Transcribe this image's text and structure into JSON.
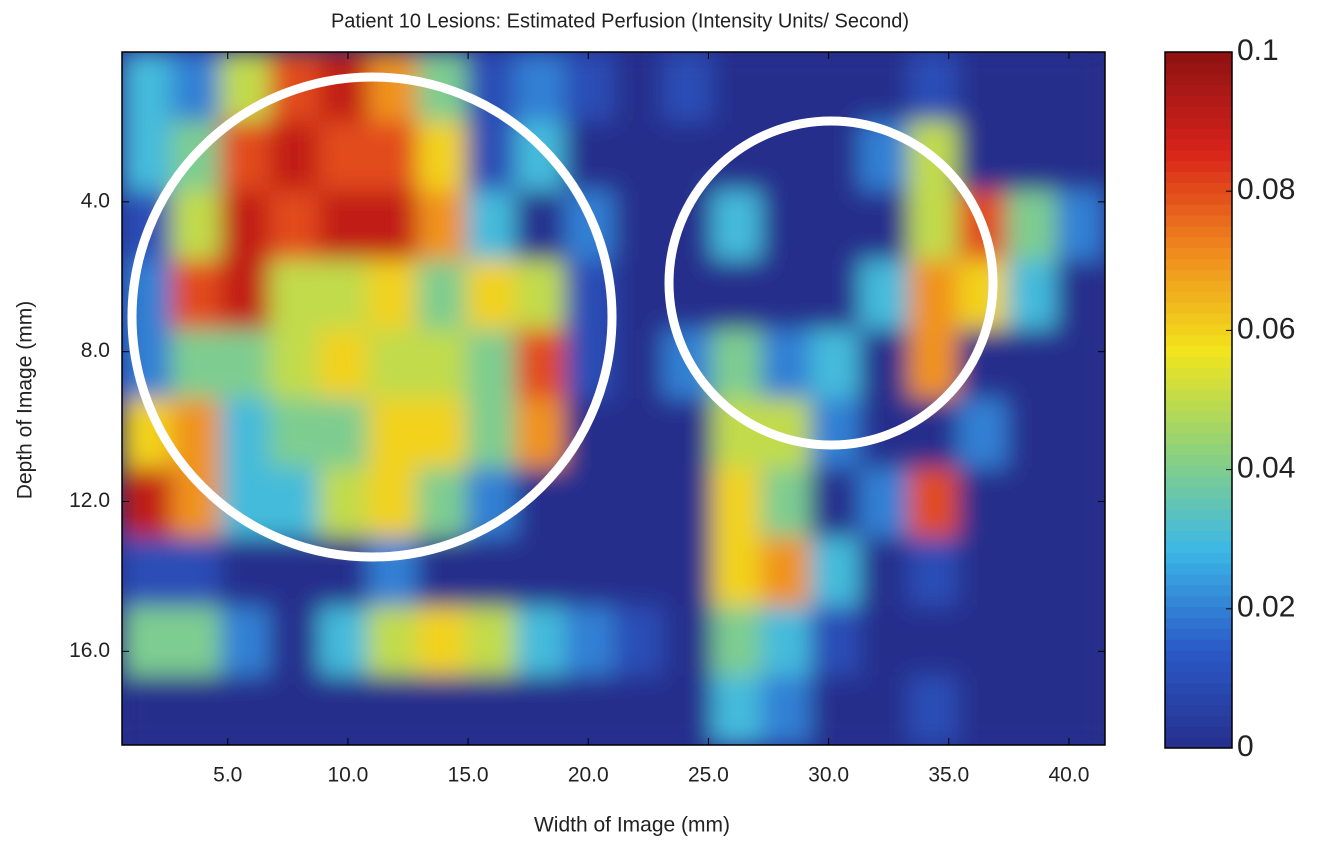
{
  "chart_data": {
    "type": "heatmap",
    "title": "Patient 10 Lesions: Estimated Perfusion (Intensity Units/ Second)",
    "x_label": "Width of Image (mm)",
    "y_label": "Depth of Image (mm)",
    "xlim": [
      0.6,
      41.5
    ],
    "ylim": [
      0,
      18.5
    ],
    "y_inverted": true,
    "xticks": [
      {
        "value": 5,
        "label": "5.0"
      },
      {
        "value": 10,
        "label": "10.0"
      },
      {
        "value": 15,
        "label": "15.0"
      },
      {
        "value": 20,
        "label": "20.0"
      },
      {
        "value": 25,
        "label": "25.0"
      },
      {
        "value": 30,
        "label": "30.0"
      },
      {
        "value": 35,
        "label": "35.0"
      },
      {
        "value": 40,
        "label": "40.0"
      }
    ],
    "yticks": [
      {
        "value": 4,
        "label": "4.0"
      },
      {
        "value": 8,
        "label": "8.0"
      },
      {
        "value": 12,
        "label": "12.0"
      },
      {
        "value": 16,
        "label": "16.0"
      }
    ],
    "colormap": [
      "#262f8c",
      "#2a5ac8",
      "#3cb8e6",
      "#8fd27a",
      "#f2e41c",
      "#f08a1e",
      "#d8231a",
      "#8c1212"
    ],
    "clim": [
      0,
      0.1
    ],
    "cticks": [
      0,
      0.02,
      0.04,
      0.06,
      0.08,
      0.1
    ],
    "values": [
      [
        0.03,
        0.02,
        0.05,
        0.08,
        0.09,
        0.07,
        0.04,
        0.01,
        0.02,
        0.01,
        0,
        0.01,
        0,
        0,
        0,
        0,
        0.01,
        0,
        0,
        0
      ],
      [
        0.03,
        0.04,
        0.08,
        0.09,
        0.08,
        0.08,
        0.06,
        0.01,
        0.03,
        0,
        0,
        0,
        0,
        0,
        0,
        0.02,
        0.05,
        0,
        0,
        0
      ],
      [
        0.01,
        0.05,
        0.09,
        0.08,
        0.09,
        0.09,
        0.07,
        0.03,
        0,
        0.02,
        0,
        0,
        0.03,
        0,
        0,
        0,
        0.05,
        0.08,
        0.04,
        0.02
      ],
      [
        0.02,
        0.08,
        0.09,
        0.05,
        0.05,
        0.06,
        0.04,
        0.06,
        0.05,
        0.01,
        0,
        0,
        0,
        0,
        0,
        0.03,
        0.07,
        0.06,
        0.03,
        0
      ],
      [
        0.02,
        0.04,
        0.04,
        0.05,
        0.06,
        0.05,
        0.05,
        0.04,
        0.08,
        0.01,
        0,
        0.02,
        0.04,
        0.02,
        0.03,
        0,
        0.07,
        0,
        0,
        0
      ],
      [
        0.06,
        0.07,
        0.03,
        0.04,
        0.04,
        0.06,
        0.06,
        0.04,
        0.07,
        0,
        0,
        0,
        0.05,
        0.05,
        0.02,
        0,
        0,
        0.02,
        0,
        0
      ],
      [
        0.09,
        0.07,
        0.03,
        0.03,
        0.05,
        0.06,
        0.04,
        0.02,
        0,
        0,
        0,
        0,
        0.06,
        0.04,
        0,
        0.02,
        0.08,
        0,
        0,
        0
      ],
      [
        0.01,
        0.01,
        0,
        0,
        0,
        0.02,
        0,
        0,
        0,
        0,
        0,
        0,
        0.06,
        0.07,
        0.03,
        0,
        0.01,
        0,
        0,
        0
      ],
      [
        0.04,
        0.04,
        0.02,
        0,
        0.03,
        0.05,
        0.06,
        0.05,
        0.03,
        0.02,
        0.01,
        0,
        0.04,
        0.03,
        0.01,
        0,
        0,
        0,
        0,
        0
      ],
      [
        0,
        0,
        0,
        0,
        0,
        0,
        0,
        0,
        0,
        0,
        0,
        0,
        0.03,
        0.02,
        0,
        0,
        0.01,
        0,
        0,
        0
      ]
    ]
  }
}
